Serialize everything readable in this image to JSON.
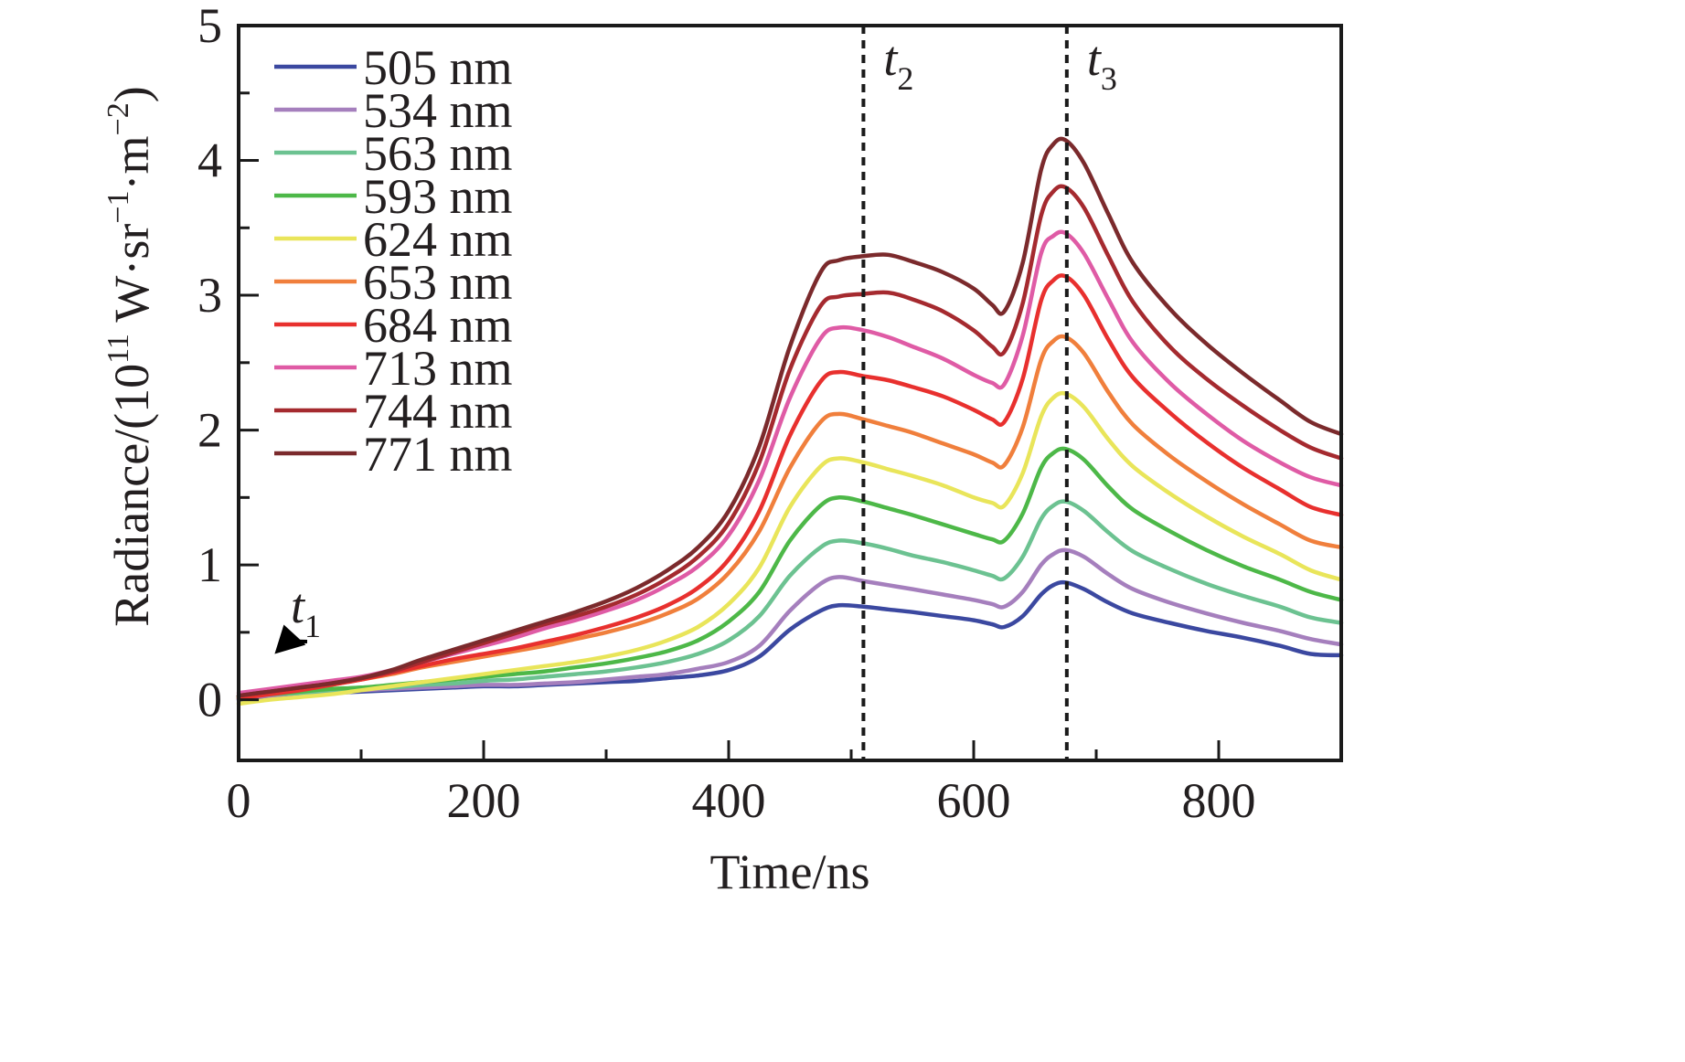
{
  "chart_data": {
    "type": "line",
    "title": "",
    "xlabel": "Time/ns",
    "ylabel": {
      "prefix": "Radiance/(10",
      "exp1": "11",
      "mid1": " W·sr",
      "exp2": "−1",
      "mid2": "·m",
      "exp3": "−2",
      "suffix": ")"
    },
    "xlim": [
      0,
      900
    ],
    "ylim": [
      -0.45,
      5
    ],
    "x_major_ticks": [
      0,
      200,
      400,
      600,
      800
    ],
    "x_minor_ticks": [
      100,
      300,
      500,
      700,
      900
    ],
    "y_major_ticks": [
      0,
      1,
      2,
      3,
      4,
      5
    ],
    "y_minor_ticks": [
      0.5,
      1.5,
      2.5,
      3.5,
      4.5
    ],
    "grid": false,
    "legend_position": "top-left",
    "x": [
      0,
      25,
      50,
      75,
      100,
      125,
      150,
      175,
      200,
      225,
      250,
      275,
      300,
      325,
      350,
      375,
      400,
      425,
      450,
      475,
      490,
      510,
      530,
      550,
      575,
      600,
      615,
      625,
      640,
      655,
      665,
      675,
      690,
      710,
      730,
      760,
      790,
      820,
      850,
      875,
      900
    ],
    "series": [
      {
        "name": "505 nm",
        "color": "#3b48a0",
        "values": [
          0.0,
          0.02,
          0.04,
          0.05,
          0.06,
          0.07,
          0.08,
          0.09,
          0.1,
          0.1,
          0.11,
          0.12,
          0.13,
          0.14,
          0.16,
          0.18,
          0.22,
          0.32,
          0.52,
          0.66,
          0.7,
          0.69,
          0.67,
          0.65,
          0.62,
          0.59,
          0.56,
          0.54,
          0.62,
          0.78,
          0.85,
          0.87,
          0.82,
          0.72,
          0.64,
          0.57,
          0.51,
          0.46,
          0.4,
          0.34,
          0.33
        ]
      },
      {
        "name": "534 nm",
        "color": "#a57fbd",
        "values": [
          0.01,
          0.03,
          0.05,
          0.06,
          0.07,
          0.08,
          0.09,
          0.1,
          0.11,
          0.11,
          0.12,
          0.13,
          0.15,
          0.17,
          0.19,
          0.23,
          0.28,
          0.4,
          0.66,
          0.86,
          0.91,
          0.88,
          0.85,
          0.82,
          0.78,
          0.74,
          0.71,
          0.69,
          0.8,
          1.0,
          1.08,
          1.11,
          1.06,
          0.93,
          0.82,
          0.72,
          0.64,
          0.57,
          0.51,
          0.45,
          0.41
        ]
      },
      {
        "name": "563 nm",
        "color": "#6cc291",
        "values": [
          0.02,
          0.04,
          0.05,
          0.07,
          0.08,
          0.09,
          0.11,
          0.12,
          0.14,
          0.15,
          0.17,
          0.19,
          0.21,
          0.24,
          0.28,
          0.34,
          0.44,
          0.62,
          0.92,
          1.13,
          1.18,
          1.16,
          1.12,
          1.07,
          1.02,
          0.96,
          0.92,
          0.9,
          1.06,
          1.34,
          1.44,
          1.47,
          1.4,
          1.24,
          1.1,
          0.97,
          0.86,
          0.77,
          0.69,
          0.61,
          0.57
        ]
      },
      {
        "name": "593 nm",
        "color": "#4db848",
        "values": [
          0.02,
          0.04,
          0.06,
          0.08,
          0.09,
          0.11,
          0.13,
          0.15,
          0.17,
          0.19,
          0.21,
          0.24,
          0.27,
          0.31,
          0.36,
          0.44,
          0.58,
          0.8,
          1.18,
          1.44,
          1.5,
          1.47,
          1.42,
          1.37,
          1.3,
          1.23,
          1.19,
          1.18,
          1.38,
          1.72,
          1.83,
          1.86,
          1.78,
          1.58,
          1.41,
          1.25,
          1.11,
          0.99,
          0.89,
          0.8,
          0.74
        ]
      },
      {
        "name": "624 nm",
        "color": "#e9e55a",
        "values": [
          -0.03,
          0.0,
          0.02,
          0.04,
          0.07,
          0.1,
          0.13,
          0.16,
          0.19,
          0.22,
          0.25,
          0.28,
          0.32,
          0.37,
          0.44,
          0.54,
          0.71,
          0.98,
          1.43,
          1.73,
          1.79,
          1.76,
          1.71,
          1.66,
          1.59,
          1.5,
          1.46,
          1.44,
          1.68,
          2.1,
          2.24,
          2.27,
          2.17,
          1.93,
          1.73,
          1.53,
          1.36,
          1.21,
          1.08,
          0.96,
          0.89
        ]
      },
      {
        "name": "653 nm",
        "color": "#f07f3c",
        "values": [
          0.02,
          0.05,
          0.08,
          0.11,
          0.15,
          0.19,
          0.24,
          0.28,
          0.32,
          0.36,
          0.4,
          0.45,
          0.5,
          0.56,
          0.64,
          0.75,
          0.94,
          1.25,
          1.72,
          2.06,
          2.12,
          2.08,
          2.03,
          1.98,
          1.9,
          1.82,
          1.76,
          1.74,
          2.02,
          2.52,
          2.66,
          2.69,
          2.57,
          2.28,
          2.04,
          1.81,
          1.62,
          1.45,
          1.3,
          1.18,
          1.13
        ]
      },
      {
        "name": "684 nm",
        "color": "#e8302e",
        "values": [
          0.01,
          0.04,
          0.07,
          0.11,
          0.15,
          0.2,
          0.25,
          0.3,
          0.34,
          0.38,
          0.43,
          0.48,
          0.54,
          0.61,
          0.7,
          0.83,
          1.04,
          1.4,
          1.96,
          2.36,
          2.43,
          2.4,
          2.37,
          2.32,
          2.25,
          2.15,
          2.08,
          2.06,
          2.38,
          2.96,
          3.11,
          3.14,
          3.0,
          2.67,
          2.39,
          2.13,
          1.91,
          1.72,
          1.56,
          1.43,
          1.37
        ]
      },
      {
        "name": "713 nm",
        "color": "#df5ba5",
        "values": [
          0.05,
          0.08,
          0.11,
          0.14,
          0.17,
          0.22,
          0.28,
          0.34,
          0.4,
          0.46,
          0.53,
          0.59,
          0.66,
          0.74,
          0.85,
          0.99,
          1.22,
          1.63,
          2.24,
          2.68,
          2.76,
          2.74,
          2.69,
          2.62,
          2.53,
          2.41,
          2.35,
          2.34,
          2.7,
          3.31,
          3.44,
          3.46,
          3.31,
          2.97,
          2.65,
          2.35,
          2.12,
          1.92,
          1.76,
          1.65,
          1.59
        ]
      },
      {
        "name": "744 nm",
        "color": "#a52a2f",
        "values": [
          0.03,
          0.06,
          0.09,
          0.12,
          0.16,
          0.21,
          0.28,
          0.35,
          0.42,
          0.49,
          0.56,
          0.62,
          0.69,
          0.78,
          0.9,
          1.06,
          1.31,
          1.76,
          2.45,
          2.92,
          2.99,
          3.01,
          3.02,
          2.97,
          2.88,
          2.74,
          2.62,
          2.58,
          2.94,
          3.59,
          3.77,
          3.8,
          3.65,
          3.29,
          2.95,
          2.62,
          2.38,
          2.18,
          2.0,
          1.87,
          1.79
        ]
      },
      {
        "name": "771 nm",
        "color": "#7b2a2c",
        "values": [
          0.03,
          0.06,
          0.09,
          0.12,
          0.16,
          0.22,
          0.3,
          0.37,
          0.44,
          0.51,
          0.58,
          0.65,
          0.73,
          0.83,
          0.96,
          1.13,
          1.4,
          1.88,
          2.62,
          3.17,
          3.26,
          3.29,
          3.3,
          3.25,
          3.17,
          3.05,
          2.93,
          2.88,
          3.24,
          3.93,
          4.12,
          4.15,
          3.98,
          3.6,
          3.24,
          2.9,
          2.64,
          2.42,
          2.22,
          2.06,
          1.97
        ]
      }
    ],
    "annotations": [
      {
        "label": "t",
        "subscript": "1",
        "type": "arrow",
        "points_to_x": 10,
        "points_to_y": 0.15
      },
      {
        "label": "t",
        "subscript": "2",
        "type": "vertical-dotted-line",
        "x": 510
      },
      {
        "label": "t",
        "subscript": "3",
        "type": "vertical-dotted-line",
        "x": 676
      }
    ]
  }
}
